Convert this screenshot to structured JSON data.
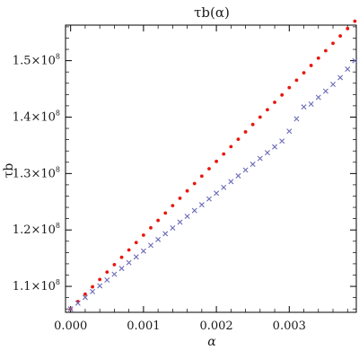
{
  "chart_data": {
    "type": "scatter",
    "title": "τb(α)",
    "xlabel": "α",
    "ylabel": "τb",
    "xlim": [
      -7e-05,
      0.00392
    ],
    "ylim": [
      105400000,
      156300000
    ],
    "grid": false,
    "legend": "none",
    "x_ticks": [
      {
        "value": 0.0,
        "label": "0.000"
      },
      {
        "value": 0.001,
        "label": "0.001"
      },
      {
        "value": 0.002,
        "label": "0.002"
      },
      {
        "value": 0.003,
        "label": "0.003"
      }
    ],
    "y_ticks": [
      {
        "value": 110000000,
        "mantissa": "1.1",
        "times": "×10",
        "exp": "8"
      },
      {
        "value": 120000000,
        "mantissa": "1.2",
        "times": "×10",
        "exp": "8"
      },
      {
        "value": 130000000,
        "mantissa": "1.3",
        "times": "×10",
        "exp": "8"
      },
      {
        "value": 140000000,
        "mantissa": "1.4",
        "times": "×10",
        "exp": "8"
      },
      {
        "value": 150000000,
        "mantissa": "1.5",
        "times": "×10",
        "exp": "8"
      }
    ],
    "series": [
      {
        "color": "#e8170f",
        "marker": "dot",
        "x": [
          0.0,
          0.0001,
          0.0002,
          0.0003,
          0.0004,
          0.0005,
          0.0006,
          0.0007,
          0.0008,
          0.0009,
          0.001,
          0.0011,
          0.0012,
          0.0013,
          0.0014,
          0.0015,
          0.0016,
          0.0017,
          0.0018,
          0.0019,
          0.002,
          0.0021,
          0.0022,
          0.0023,
          0.0024,
          0.0025,
          0.0026,
          0.0027,
          0.0028,
          0.0029,
          0.003,
          0.0031,
          0.0032,
          0.0033,
          0.0034,
          0.0035,
          0.0036,
          0.0037,
          0.0038,
          0.0039
        ],
        "values": [
          106000000,
          107310000,
          108620000,
          109920000,
          111230000,
          112540000,
          113850000,
          115150000,
          116460000,
          117770000,
          119080000,
          120380000,
          121690000,
          123000000,
          124310000,
          125620000,
          126920000,
          128230000,
          129540000,
          130850000,
          132150000,
          133460000,
          134770000,
          136080000,
          137380000,
          138690000,
          140000000,
          141310000,
          142620000,
          143920000,
          145230000,
          146540000,
          147850000,
          149150000,
          150460000,
          151770000,
          153080000,
          154380000,
          155690000,
          157000000
        ]
      },
      {
        "color": "#6a6ab8",
        "marker": "cross",
        "x": [
          0.0,
          0.0001,
          0.0002,
          0.0003,
          0.0004,
          0.0005,
          0.0006,
          0.0007,
          0.0008,
          0.0009,
          0.001,
          0.0011,
          0.0012,
          0.0013,
          0.0014,
          0.0015,
          0.0016,
          0.0017,
          0.0018,
          0.0019,
          0.002,
          0.0021,
          0.0022,
          0.0023,
          0.0024,
          0.0025,
          0.0026,
          0.0027,
          0.0028,
          0.0029,
          0.003,
          0.0031,
          0.0032,
          0.0033,
          0.0034,
          0.0035,
          0.0036,
          0.0037,
          0.0038,
          0.0039
        ],
        "values": [
          106000000,
          107030000,
          108050000,
          109080000,
          110100000,
          111130000,
          112150000,
          113180000,
          114210000,
          115230000,
          116260000,
          117280000,
          118310000,
          119330000,
          120360000,
          121390000,
          122410000,
          123440000,
          124460000,
          125490000,
          126510000,
          127540000,
          128570000,
          129590000,
          130620000,
          131640000,
          132670000,
          133690000,
          134720000,
          135750000,
          137500000,
          139700000,
          141800000,
          142300000,
          143500000,
          144600000,
          145800000,
          147000000,
          148500000,
          150000000
        ]
      }
    ]
  }
}
